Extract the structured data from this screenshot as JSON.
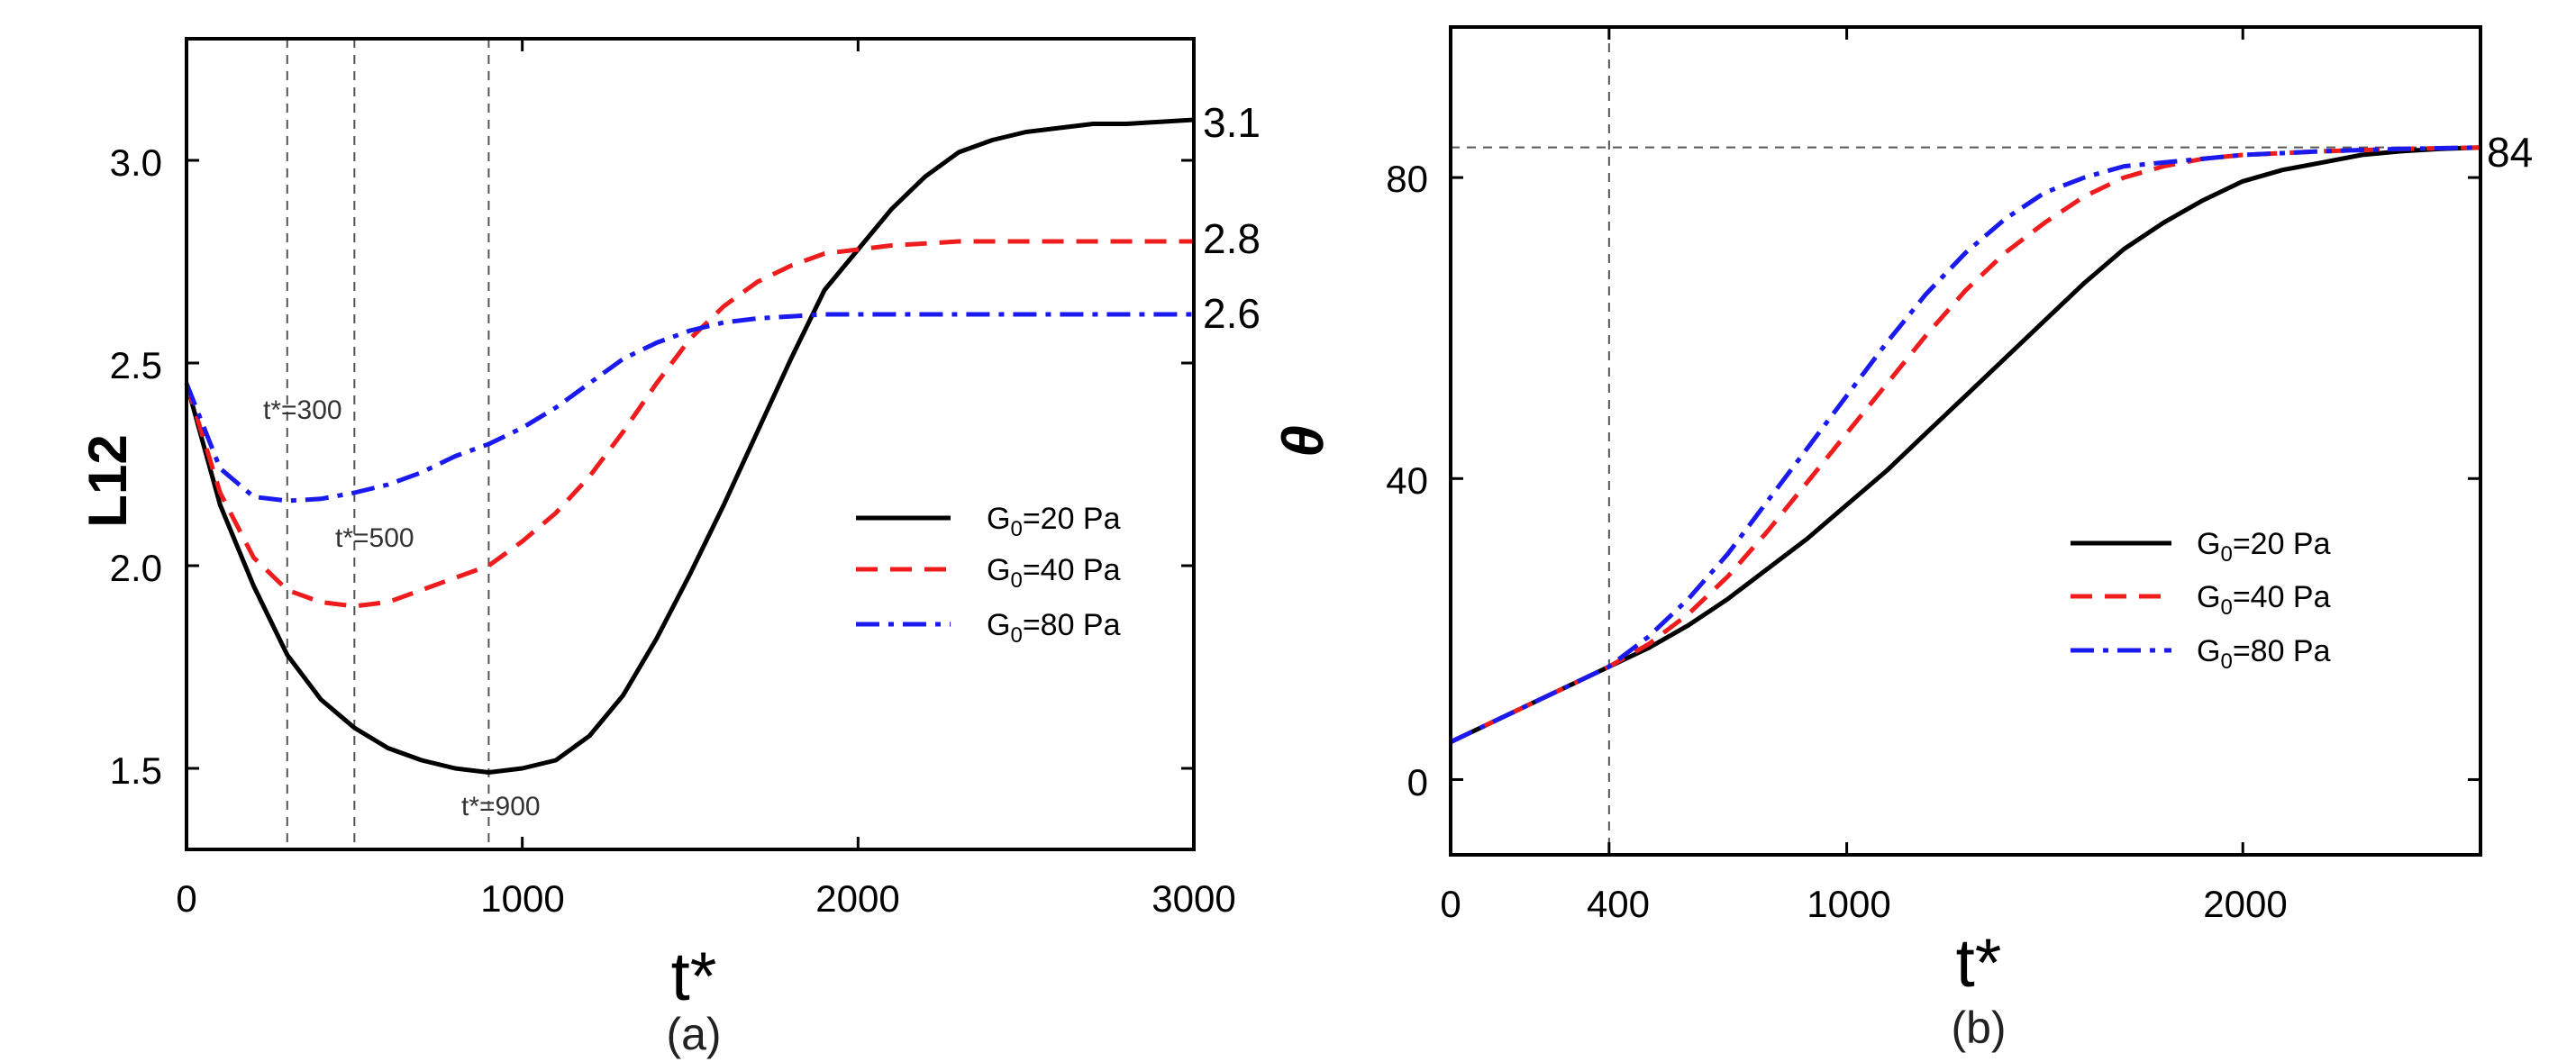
{
  "chart_data": [
    {
      "type": "line",
      "panel_label": "(a)",
      "xlabel": "t*",
      "ylabel": "L12",
      "xlim": [
        0,
        3000
      ],
      "ylim": [
        1.3,
        3.3
      ],
      "xticks": [
        0,
        1000,
        2000,
        3000
      ],
      "yticks": [
        1.5,
        2.0,
        2.5,
        3.0
      ],
      "xtick_labels": [
        "0",
        "1000",
        "2000",
        "3000"
      ],
      "ytick_labels": [
        "1.5",
        "2.0",
        "2.5",
        "3.0"
      ],
      "series": [
        {
          "name": "G0=20 Pa",
          "legend_base": "G",
          "legend_sub": "0",
          "legend_rest": "=20 Pa",
          "color": "#000000",
          "dash": "solid",
          "x": [
            0,
            100,
            200,
            300,
            400,
            500,
            600,
            700,
            800,
            900,
            1000,
            1100,
            1200,
            1300,
            1400,
            1500,
            1600,
            1700,
            1800,
            1900,
            2000,
            2100,
            2200,
            2300,
            2400,
            2500,
            2600,
            2700,
            2800,
            2900,
            3000
          ],
          "y": [
            2.45,
            2.15,
            1.95,
            1.78,
            1.67,
            1.6,
            1.55,
            1.52,
            1.5,
            1.49,
            1.5,
            1.52,
            1.58,
            1.68,
            1.82,
            1.98,
            2.15,
            2.33,
            2.51,
            2.68,
            2.78,
            2.88,
            2.96,
            3.02,
            3.05,
            3.07,
            3.08,
            3.09,
            3.09,
            3.095,
            3.1
          ]
        },
        {
          "name": "G0=40 Pa",
          "legend_base": "G",
          "legend_sub": "0",
          "legend_rest": "=40 Pa",
          "color": "#ee1c1c",
          "dash": "dashed",
          "x": [
            0,
            100,
            200,
            300,
            400,
            500,
            600,
            700,
            800,
            900,
            1000,
            1100,
            1200,
            1300,
            1400,
            1500,
            1600,
            1700,
            1800,
            1900,
            2000,
            2100,
            2200,
            2300,
            2400,
            2500,
            2600,
            2700,
            2800,
            2900,
            3000
          ],
          "y": [
            2.45,
            2.18,
            2.02,
            1.94,
            1.91,
            1.9,
            1.91,
            1.94,
            1.97,
            2.0,
            2.06,
            2.13,
            2.22,
            2.33,
            2.45,
            2.56,
            2.64,
            2.7,
            2.74,
            2.77,
            2.78,
            2.79,
            2.795,
            2.8,
            2.8,
            2.8,
            2.8,
            2.8,
            2.8,
            2.8,
            2.8
          ]
        },
        {
          "name": "G0=80 Pa",
          "legend_base": "G",
          "legend_sub": "0",
          "legend_rest": "=80 Pa",
          "color": "#1a1aee",
          "dash": "dashdot",
          "x": [
            0,
            100,
            200,
            300,
            400,
            500,
            600,
            700,
            800,
            900,
            1000,
            1100,
            1200,
            1300,
            1400,
            1500,
            1600,
            1700,
            1800,
            1900,
            2000,
            2200,
            2400,
            2600,
            2800,
            3000
          ],
          "y": [
            2.45,
            2.24,
            2.17,
            2.16,
            2.165,
            2.18,
            2.2,
            2.23,
            2.27,
            2.3,
            2.34,
            2.39,
            2.45,
            2.51,
            2.55,
            2.58,
            2.6,
            2.61,
            2.615,
            2.62,
            2.62,
            2.62,
            2.62,
            2.62,
            2.62,
            2.62
          ]
        }
      ],
      "vlines": [
        300,
        500,
        900
      ],
      "annotations": [
        {
          "text": "t*=300",
          "x": 150,
          "y": 2.35
        },
        {
          "text": "t*=500",
          "x": 450,
          "y": 2.04
        },
        {
          "text": "t*=900",
          "x": 930,
          "y": 1.41
        }
      ],
      "end_labels": [
        "3.1",
        "2.8",
        "2.6"
      ],
      "legend": "center-right"
    },
    {
      "type": "line",
      "panel_label": "(b)",
      "xlabel": "t*",
      "ylabel": "θ",
      "xlim": [
        0,
        2600
      ],
      "ylim": [
        -10,
        100
      ],
      "xticks": [
        0,
        400,
        1000,
        2000
      ],
      "yticks": [
        0,
        40,
        80
      ],
      "xtick_labels": [
        "0",
        "400",
        "1000",
        "2000"
      ],
      "ytick_labels": [
        "0",
        "40",
        "80"
      ],
      "series": [
        {
          "name": "G0=20 Pa",
          "legend_base": "G",
          "legend_sub": "0",
          "legend_rest": "=20 Pa",
          "color": "#000000",
          "dash": "solid",
          "x": [
            0,
            100,
            200,
            300,
            400,
            500,
            600,
            700,
            800,
            900,
            1000,
            1100,
            1200,
            1300,
            1400,
            1500,
            1600,
            1700,
            1800,
            1900,
            2000,
            2100,
            2200,
            2300,
            2400,
            2500,
            2600
          ],
          "y": [
            5,
            7.5,
            10,
            12.5,
            15,
            17.5,
            20.5,
            24,
            28,
            32,
            36.5,
            41,
            46,
            51,
            56,
            61,
            66,
            70.5,
            74,
            77,
            79.5,
            81,
            82,
            83,
            83.5,
            83.8,
            84
          ]
        },
        {
          "name": "G0=40 Pa",
          "legend_base": "G",
          "legend_sub": "0",
          "legend_rest": "=40 Pa",
          "color": "#ee1c1c",
          "dash": "dashed",
          "x": [
            0,
            100,
            200,
            300,
            400,
            500,
            600,
            700,
            800,
            900,
            1000,
            1100,
            1200,
            1300,
            1400,
            1500,
            1600,
            1700,
            1800,
            1900,
            2000,
            2200,
            2400,
            2600
          ],
          "y": [
            5,
            7.5,
            10,
            12.5,
            15,
            18,
            22,
            27,
            33,
            39.5,
            46,
            52.5,
            59,
            65,
            70,
            74,
            77.5,
            80,
            81.5,
            82.5,
            83,
            83.5,
            83.8,
            84
          ]
        },
        {
          "name": "G0=80 Pa",
          "legend_base": "G",
          "legend_sub": "0",
          "legend_rest": "=80 Pa",
          "color": "#1a1aee",
          "dash": "dashdot",
          "x": [
            0,
            100,
            200,
            300,
            400,
            500,
            600,
            700,
            800,
            900,
            1000,
            1100,
            1200,
            1300,
            1400,
            1500,
            1600,
            1700,
            1800,
            1900,
            2000,
            2200,
            2400,
            2600
          ],
          "y": [
            5,
            7.5,
            10,
            12.5,
            15,
            19,
            24,
            30,
            37,
            44,
            51,
            58,
            64.5,
            70,
            74.5,
            78,
            80,
            81.5,
            82,
            82.5,
            83,
            83.5,
            83.8,
            84
          ]
        }
      ],
      "vlines": [
        400
      ],
      "hlines": [
        84
      ],
      "end_labels": [
        "84"
      ],
      "legend": "center-right"
    }
  ]
}
